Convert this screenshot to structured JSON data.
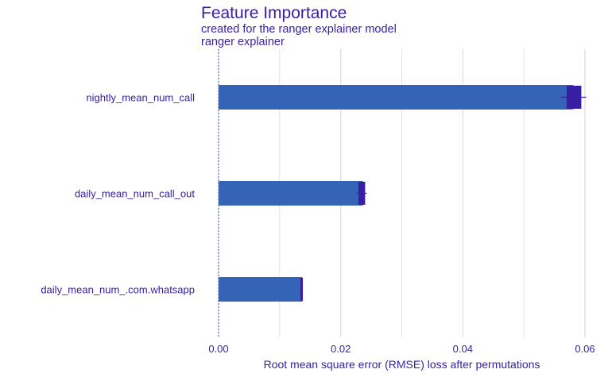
{
  "header": {
    "title": "Feature Importance",
    "subtitle": "created for the ranger explainer model",
    "panel_label": "ranger explainer"
  },
  "chart_data": {
    "type": "bar",
    "orientation": "horizontal",
    "title": "Feature Importance",
    "subtitle": "created for the ranger explainer model",
    "panel_label": "ranger explainer",
    "xlabel": "Root mean square error (RMSE) loss after permutations",
    "ylabel": "",
    "xlim": [
      0,
      0.06
    ],
    "x_ticks": [
      0,
      0.02,
      0.04,
      0.06
    ],
    "x_tick_labels": [
      "0.00",
      "0.02",
      "0.04",
      "0.06"
    ],
    "baseline": 0,
    "categories": [
      "nightly_mean_num_call",
      "daily_mean_num_call_out",
      "daily_mean_num_.com.whatsapp"
    ],
    "values": [
      0.0581,
      0.0236,
      0.0137
    ],
    "box_low": [
      0.057,
      0.0229,
      0.0134
    ],
    "box_high": [
      0.0594,
      0.024,
      0.0138
    ],
    "whisker_low": [
      0.056,
      0.0226,
      0.0134
    ],
    "whisker_high": [
      0.0602,
      0.0243,
      0.0138
    ],
    "grid": true,
    "legend": "none",
    "colors": {
      "bar": "#3563b5",
      "boxplot": "#371ea3",
      "text": "#371ea3",
      "grid": "#dcdcdc",
      "baseline": "#4d76b8"
    }
  }
}
